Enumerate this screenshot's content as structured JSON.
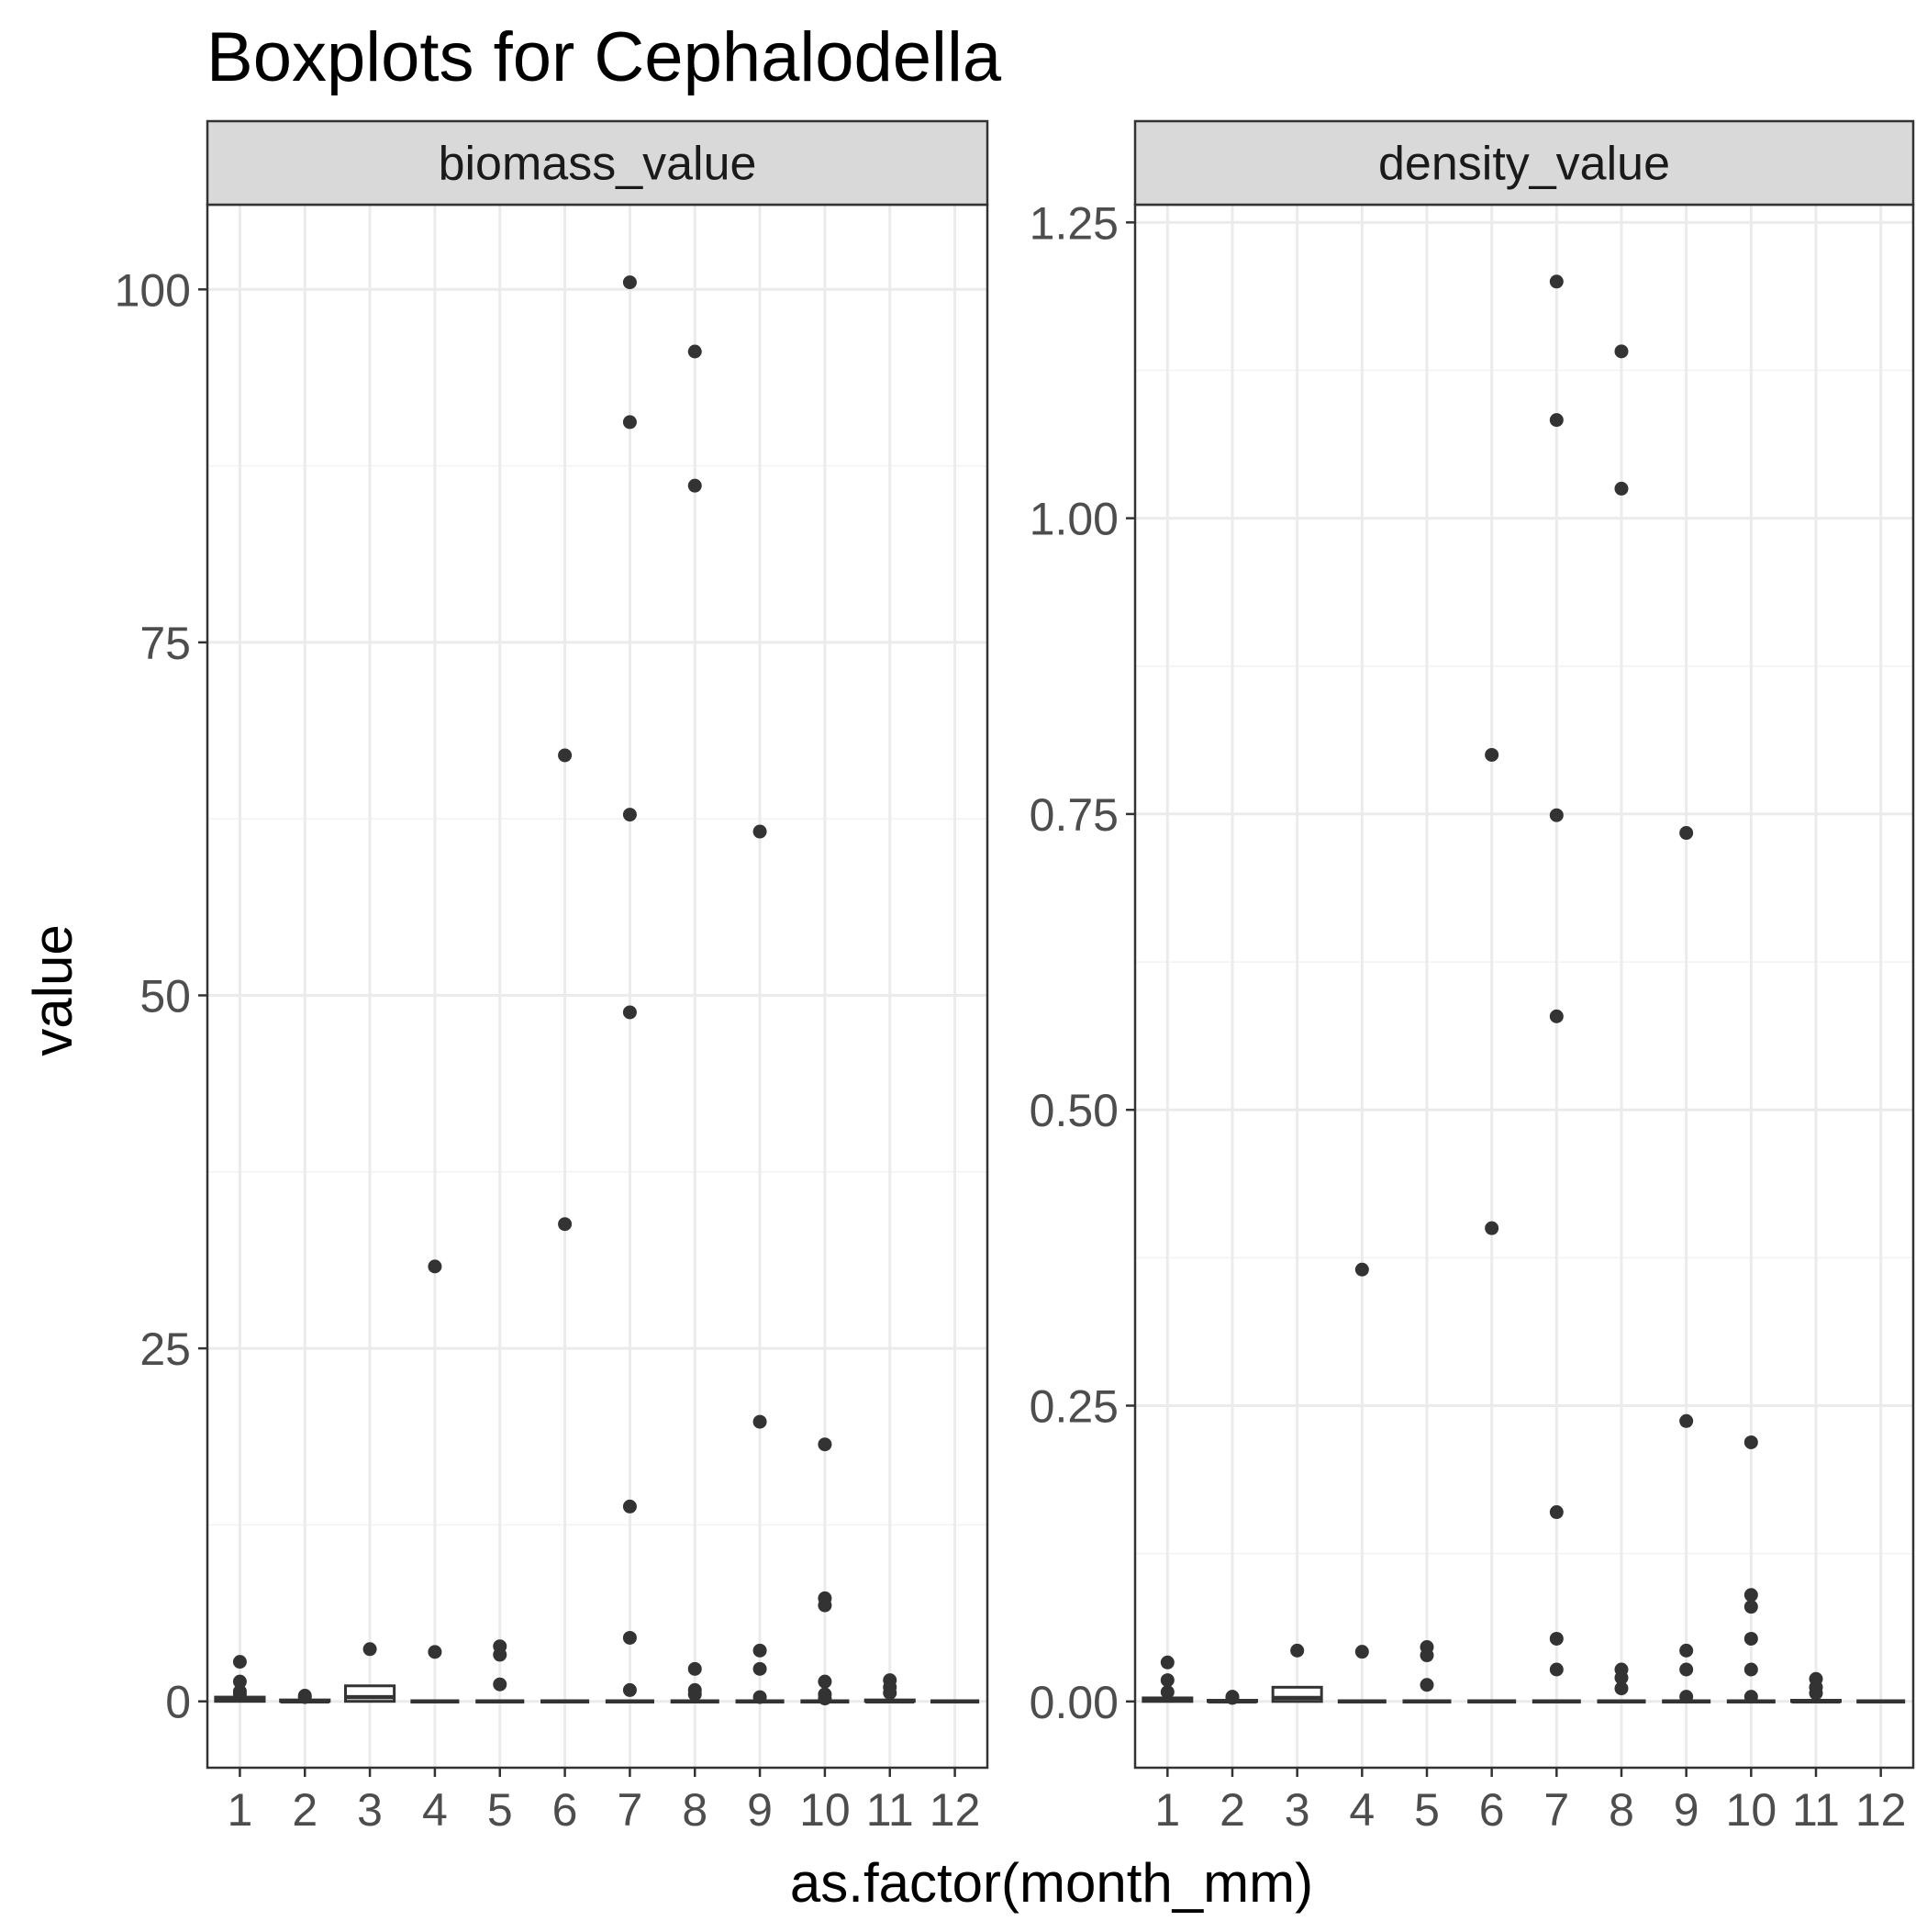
{
  "chart_data": {
    "type": "boxplot",
    "title": "Boxplots for Cephalodella",
    "xlabel": "as.factor(month_mm)",
    "ylabel": "value",
    "categories": [
      "1",
      "2",
      "3",
      "4",
      "5",
      "6",
      "7",
      "8",
      "9",
      "10",
      "11",
      "12"
    ],
    "grid": true,
    "legend": "none",
    "facets": [
      {
        "name": "biomass_value",
        "ylim": [
          -4.7,
          106.0
        ],
        "yticks": [
          0,
          25,
          50,
          75,
          100
        ],
        "ytick_labels": [
          "0",
          "25",
          "50",
          "75",
          "100"
        ],
        "boxes": [
          {
            "category": "1",
            "q1": 0,
            "median": 0.1,
            "q3": 0.3,
            "outliers": [
              2.8,
              1.4,
              0.7,
              0.5
            ]
          },
          {
            "category": "2",
            "q1": 0,
            "median": 0,
            "q3": 0.1,
            "outliers": [
              0.4,
              0.3
            ]
          },
          {
            "category": "3",
            "q1": 0,
            "median": 0.3,
            "q3": 1.1,
            "outliers": [
              3.7
            ]
          },
          {
            "category": "4",
            "q1": 0,
            "median": 0,
            "q3": 0,
            "outliers": [
              30.8,
              3.5
            ]
          },
          {
            "category": "5",
            "q1": 0,
            "median": 0,
            "q3": 0,
            "outliers": [
              3.9,
              3.3,
              1.2
            ]
          },
          {
            "category": "6",
            "q1": 0,
            "median": 0,
            "q3": 0,
            "outliers": [
              67.0,
              33.8
            ]
          },
          {
            "category": "7",
            "q1": 0,
            "median": 0,
            "q3": 0,
            "outliers": [
              100.5,
              90.6,
              62.8,
              48.8,
              13.8,
              4.5,
              0.8
            ]
          },
          {
            "category": "8",
            "q1": 0,
            "median": 0,
            "q3": 0,
            "outliers": [
              95.6,
              86.1,
              2.3,
              0.8,
              0.5
            ]
          },
          {
            "category": "9",
            "q1": 0,
            "median": 0,
            "q3": 0,
            "outliers": [
              61.6,
              19.8,
              3.6,
              2.3,
              0.3
            ]
          },
          {
            "category": "10",
            "q1": 0,
            "median": 0,
            "q3": 0,
            "outliers": [
              18.2,
              7.3,
              6.8,
              1.4,
              0.5,
              0.2
            ]
          },
          {
            "category": "11",
            "q1": 0,
            "median": 0,
            "q3": 0.1,
            "outliers": [
              1.5,
              1.0,
              0.6
            ]
          },
          {
            "category": "12",
            "q1": 0,
            "median": 0,
            "q3": 0,
            "outliers": []
          }
        ]
      },
      {
        "name": "density_value",
        "ylim": [
          -0.056,
          1.265
        ],
        "yticks": [
          0,
          0.25,
          0.5,
          0.75,
          1.0,
          1.25
        ],
        "ytick_labels": [
          "0.00",
          "0.25",
          "0.50",
          "0.75",
          "1.00",
          "1.25"
        ],
        "boxes": [
          {
            "category": "1",
            "q1": 0,
            "median": 0.001,
            "q3": 0.003,
            "outliers": [
              0.033,
              0.018,
              0.008
            ]
          },
          {
            "category": "2",
            "q1": 0,
            "median": 0,
            "q3": 0.001,
            "outliers": [
              0.004,
              0.003
            ]
          },
          {
            "category": "3",
            "q1": 0,
            "median": 0.003,
            "q3": 0.012,
            "outliers": [
              0.043
            ]
          },
          {
            "category": "4",
            "q1": 0,
            "median": 0,
            "q3": 0,
            "outliers": [
              0.365,
              0.042
            ]
          },
          {
            "category": "5",
            "q1": 0,
            "median": 0,
            "q3": 0,
            "outliers": [
              0.046,
              0.039,
              0.014
            ]
          },
          {
            "category": "6",
            "q1": 0,
            "median": 0,
            "q3": 0,
            "outliers": [
              0.8,
              0.4
            ]
          },
          {
            "category": "7",
            "q1": 0,
            "median": 0,
            "q3": 0,
            "outliers": [
              1.2,
              1.083,
              0.749,
              0.579,
              0.16,
              0.053,
              0.027
            ]
          },
          {
            "category": "8",
            "q1": 0,
            "median": 0,
            "q3": 0,
            "outliers": [
              1.141,
              1.025,
              0.027,
              0.02,
              0.011
            ]
          },
          {
            "category": "9",
            "q1": 0,
            "median": 0,
            "q3": 0,
            "outliers": [
              0.734,
              0.237,
              0.043,
              0.027,
              0.004
            ]
          },
          {
            "category": "10",
            "q1": 0,
            "median": 0,
            "q3": 0,
            "outliers": [
              0.219,
              0.09,
              0.08,
              0.053,
              0.027,
              0.004
            ]
          },
          {
            "category": "11",
            "q1": 0,
            "median": 0,
            "q3": 0.001,
            "outliers": [
              0.019,
              0.012,
              0.007
            ]
          },
          {
            "category": "12",
            "q1": 0,
            "median": 0,
            "q3": 0,
            "outliers": []
          }
        ]
      }
    ]
  }
}
